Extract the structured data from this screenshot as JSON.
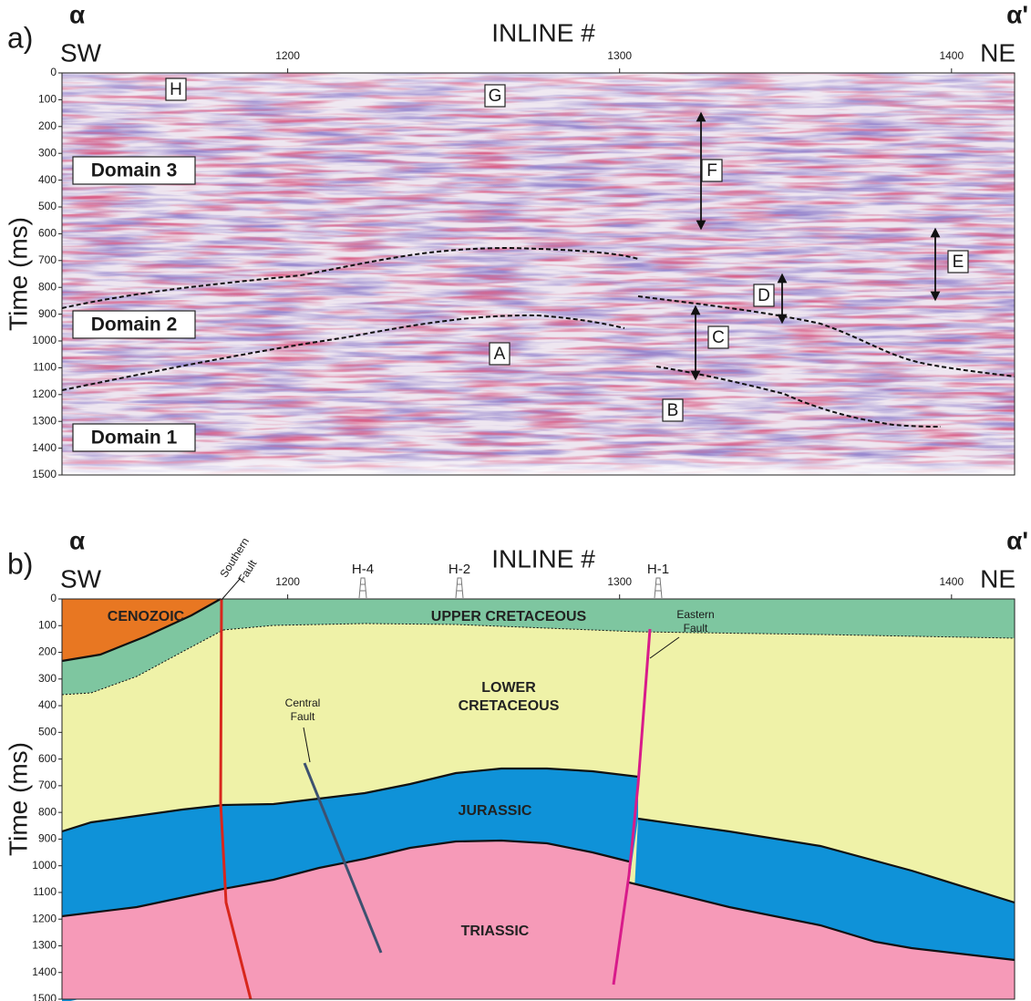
{
  "panels": [
    {
      "label": "a)",
      "axis_title": "INLINE #",
      "left_symbol": "α",
      "right_symbol": "α'",
      "left_direction": "SW",
      "right_direction": "NE",
      "y_label": "Time (ms)",
      "xlim": [
        1132,
        1419
      ],
      "ylim": [
        0,
        1500
      ],
      "xticks": [
        1200,
        1300,
        1400
      ],
      "yticks": [
        0,
        100,
        200,
        300,
        400,
        500,
        600,
        700,
        800,
        900,
        1000,
        1100,
        1200,
        1300,
        1400,
        1500
      ],
      "features": [
        "H",
        "G",
        "F",
        "E",
        "D",
        "C",
        "A",
        "B"
      ],
      "domains": [
        "Domain 3",
        "Domain 2",
        "Domain 1"
      ]
    },
    {
      "label": "b)",
      "axis_title": "INLINE #",
      "left_symbol": "α",
      "right_symbol": "α'",
      "left_direction": "SW",
      "right_direction": "NE",
      "y_label": "Time (ms)",
      "xlim": [
        1132,
        1419
      ],
      "ylim": [
        0,
        1500
      ],
      "xticks": [
        1200,
        1300,
        1400
      ],
      "yticks": [
        0,
        100,
        200,
        300,
        400,
        500,
        600,
        700,
        800,
        900,
        1000,
        1100,
        1200,
        1300,
        1400,
        1500
      ],
      "units": [
        [
          "CENOZOIC"
        ],
        [
          "UPPER CRETACEOUS"
        ],
        [
          "LOWER",
          "CRETACEOUS"
        ],
        [
          "JURASSIC"
        ],
        [
          "TRIASSIC"
        ]
      ],
      "faults": [
        [
          "Southern",
          "Fault"
        ],
        [
          "Central",
          "Fault"
        ],
        [
          "Eastern",
          "Fault"
        ]
      ],
      "wells": [
        "H-4",
        "H-2",
        "H-1"
      ]
    }
  ]
}
